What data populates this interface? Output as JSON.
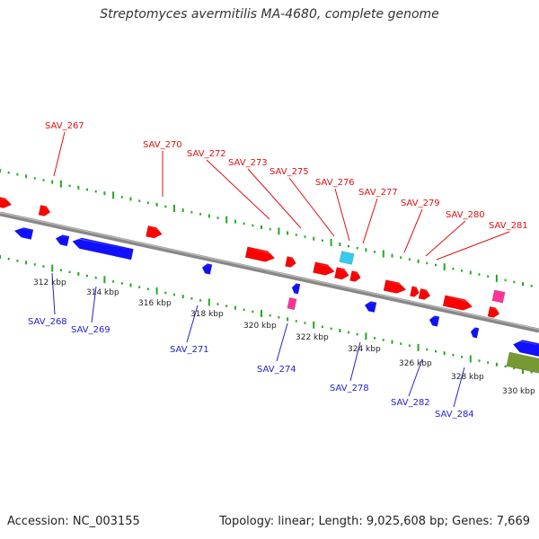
{
  "title": "Streptomyces avermitilis MA-4680, complete genome",
  "footer": {
    "accession": "Accession: NC_003155",
    "summary": "Topology: linear; Length: 9,025,608 bp; Genes: 7,669"
  },
  "ticks": [
    "312 kbp",
    "314 kbp",
    "316 kbp",
    "318 kbp",
    "320 kbp",
    "322 kbp",
    "324 kbp",
    "326 kbp",
    "328 kbp",
    "330 kbp"
  ],
  "labels_top": [
    "SAV_267",
    "SAV_270",
    "SAV_272",
    "SAV_273",
    "SAV_275",
    "SAV_276",
    "SAV_277",
    "SAV_279",
    "SAV_280",
    "SAV_281"
  ],
  "labels_bottom": [
    "SAV_268",
    "SAV_269",
    "SAV_271",
    "SAV_274",
    "SAV_278",
    "SAV_282",
    "SAV_284"
  ],
  "colors": {
    "forward": "#ff0000",
    "reverse": "#1010ff",
    "pink": "#ff3399",
    "cyan": "#33ccee",
    "olive": "#779933",
    "ruler": "#22aa22",
    "backbone": "#888888",
    "label_top": "#dd1111",
    "label_bottom": "#2222cc"
  }
}
